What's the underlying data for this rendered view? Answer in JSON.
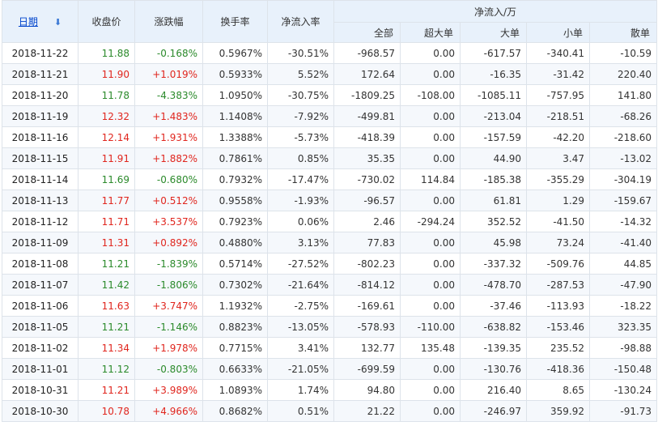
{
  "headers": {
    "date": "日期",
    "close": "收盘价",
    "change": "涨跌幅",
    "turnover": "换手率",
    "net_rate": "净流入率",
    "net_flow_group": "净流入/万",
    "all": "全部",
    "super_large": "超大单",
    "large": "大单",
    "small": "小单",
    "retail": "散单"
  },
  "colors": {
    "up": "#e0261e",
    "down": "#2b8a2b",
    "header_bg": "#e8f1fb"
  },
  "icons": {
    "sort": "sort-down-arrow-icon"
  },
  "rows": [
    {
      "date": "2018-11-22",
      "close": "11.88",
      "change": "-0.168%",
      "turnover": "0.5967%",
      "net_rate": "-30.51%",
      "all": "-968.57",
      "super_large": "0.00",
      "large": "-617.57",
      "small": "-340.41",
      "retail": "-10.59",
      "dir": "down"
    },
    {
      "date": "2018-11-21",
      "close": "11.90",
      "change": "+1.019%",
      "turnover": "0.5933%",
      "net_rate": "5.52%",
      "all": "172.64",
      "super_large": "0.00",
      "large": "-16.35",
      "small": "-31.42",
      "retail": "220.40",
      "dir": "up"
    },
    {
      "date": "2018-11-20",
      "close": "11.78",
      "change": "-4.383%",
      "turnover": "1.0950%",
      "net_rate": "-30.75%",
      "all": "-1809.25",
      "super_large": "-108.00",
      "large": "-1085.11",
      "small": "-757.95",
      "retail": "141.80",
      "dir": "down"
    },
    {
      "date": "2018-11-19",
      "close": "12.32",
      "change": "+1.483%",
      "turnover": "1.1408%",
      "net_rate": "-7.92%",
      "all": "-499.81",
      "super_large": "0.00",
      "large": "-213.04",
      "small": "-218.51",
      "retail": "-68.26",
      "dir": "up"
    },
    {
      "date": "2018-11-16",
      "close": "12.14",
      "change": "+1.931%",
      "turnover": "1.3388%",
      "net_rate": "-5.73%",
      "all": "-418.39",
      "super_large": "0.00",
      "large": "-157.59",
      "small": "-42.20",
      "retail": "-218.60",
      "dir": "up"
    },
    {
      "date": "2018-11-15",
      "close": "11.91",
      "change": "+1.882%",
      "turnover": "0.7861%",
      "net_rate": "0.85%",
      "all": "35.35",
      "super_large": "0.00",
      "large": "44.90",
      "small": "3.47",
      "retail": "-13.02",
      "dir": "up"
    },
    {
      "date": "2018-11-14",
      "close": "11.69",
      "change": "-0.680%",
      "turnover": "0.7932%",
      "net_rate": "-17.47%",
      "all": "-730.02",
      "super_large": "114.84",
      "large": "-185.38",
      "small": "-355.29",
      "retail": "-304.19",
      "dir": "down"
    },
    {
      "date": "2018-11-13",
      "close": "11.77",
      "change": "+0.512%",
      "turnover": "0.9558%",
      "net_rate": "-1.93%",
      "all": "-96.57",
      "super_large": "0.00",
      "large": "61.81",
      "small": "1.29",
      "retail": "-159.67",
      "dir": "up"
    },
    {
      "date": "2018-11-12",
      "close": "11.71",
      "change": "+3.537%",
      "turnover": "0.7923%",
      "net_rate": "0.06%",
      "all": "2.46",
      "super_large": "-294.24",
      "large": "352.52",
      "small": "-41.50",
      "retail": "-14.32",
      "dir": "up"
    },
    {
      "date": "2018-11-09",
      "close": "11.31",
      "change": "+0.892%",
      "turnover": "0.4880%",
      "net_rate": "3.13%",
      "all": "77.83",
      "super_large": "0.00",
      "large": "45.98",
      "small": "73.24",
      "retail": "-41.40",
      "dir": "up"
    },
    {
      "date": "2018-11-08",
      "close": "11.21",
      "change": "-1.839%",
      "turnover": "0.5714%",
      "net_rate": "-27.52%",
      "all": "-802.23",
      "super_large": "0.00",
      "large": "-337.32",
      "small": "-509.76",
      "retail": "44.85",
      "dir": "down"
    },
    {
      "date": "2018-11-07",
      "close": "11.42",
      "change": "-1.806%",
      "turnover": "0.7302%",
      "net_rate": "-21.64%",
      "all": "-814.12",
      "super_large": "0.00",
      "large": "-478.70",
      "small": "-287.53",
      "retail": "-47.90",
      "dir": "down"
    },
    {
      "date": "2018-11-06",
      "close": "11.63",
      "change": "+3.747%",
      "turnover": "1.1932%",
      "net_rate": "-2.75%",
      "all": "-169.61",
      "super_large": "0.00",
      "large": "-37.46",
      "small": "-113.93",
      "retail": "-18.22",
      "dir": "up"
    },
    {
      "date": "2018-11-05",
      "close": "11.21",
      "change": "-1.146%",
      "turnover": "0.8823%",
      "net_rate": "-13.05%",
      "all": "-578.93",
      "super_large": "-110.00",
      "large": "-638.82",
      "small": "-153.46",
      "retail": "323.35",
      "dir": "down"
    },
    {
      "date": "2018-11-02",
      "close": "11.34",
      "change": "+1.978%",
      "turnover": "0.7715%",
      "net_rate": "3.41%",
      "all": "132.77",
      "super_large": "135.48",
      "large": "-139.35",
      "small": "235.52",
      "retail": "-98.88",
      "dir": "up"
    },
    {
      "date": "2018-11-01",
      "close": "11.12",
      "change": "-0.803%",
      "turnover": "0.6633%",
      "net_rate": "-21.05%",
      "all": "-699.59",
      "super_large": "0.00",
      "large": "-130.76",
      "small": "-418.36",
      "retail": "-150.48",
      "dir": "down"
    },
    {
      "date": "2018-10-31",
      "close": "11.21",
      "change": "+3.989%",
      "turnover": "1.0893%",
      "net_rate": "1.74%",
      "all": "94.80",
      "super_large": "0.00",
      "large": "216.40",
      "small": "8.65",
      "retail": "-130.24",
      "dir": "up"
    },
    {
      "date": "2018-10-30",
      "close": "10.78",
      "change": "+4.966%",
      "turnover": "0.8682%",
      "net_rate": "0.51%",
      "all": "21.22",
      "super_large": "0.00",
      "large": "-246.97",
      "small": "359.92",
      "retail": "-91.73",
      "dir": "up"
    }
  ]
}
